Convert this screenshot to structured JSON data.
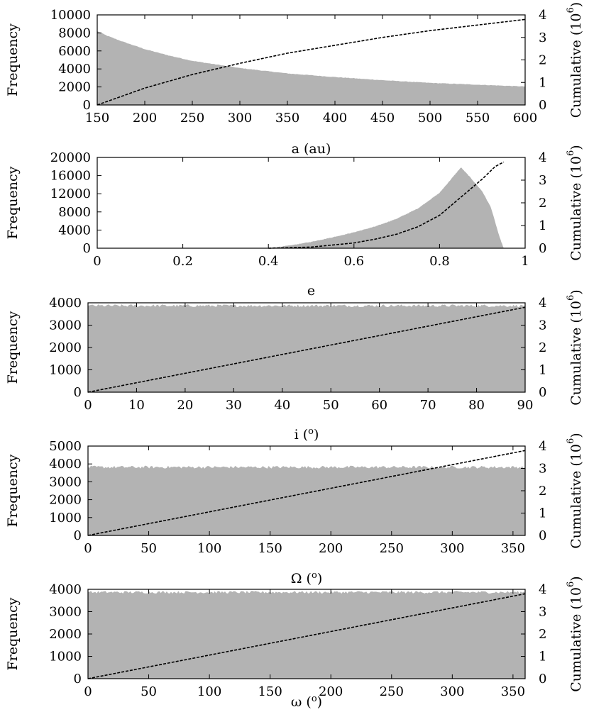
{
  "chart_data": [
    {
      "type": "area",
      "xlabel": "a (au)",
      "ylabel": "Frequency",
      "y2label": "Cumulative (10",
      "y2label_exp": "6",
      "xlim": [
        150,
        600
      ],
      "ylim": [
        0,
        10000
      ],
      "y2lim": [
        0,
        4
      ],
      "xticks": [
        150,
        200,
        250,
        300,
        350,
        400,
        450,
        500,
        550,
        600
      ],
      "yticks": [
        0,
        2000,
        4000,
        6000,
        8000,
        10000
      ],
      "y2ticks": [
        0,
        1,
        2,
        3,
        4
      ],
      "series": [
        {
          "name": "Frequency",
          "style": "gray-histogram",
          "x": [
            150,
            160,
            175,
            200,
            225,
            250,
            275,
            300,
            350,
            400,
            450,
            500,
            550,
            600
          ],
          "values": [
            8200,
            7700,
            7100,
            6200,
            5500,
            4900,
            4500,
            4100,
            3500,
            3100,
            2750,
            2450,
            2250,
            2050
          ]
        },
        {
          "name": "Cumulative",
          "style": "dashed",
          "axis": "y2",
          "x": [
            150,
            200,
            250,
            300,
            350,
            400,
            450,
            500,
            550,
            600
          ],
          "values": [
            0,
            0.75,
            1.35,
            1.85,
            2.3,
            2.65,
            3.0,
            3.3,
            3.55,
            3.8
          ]
        }
      ]
    },
    {
      "type": "area",
      "xlabel": "e",
      "ylabel": "Frequency",
      "y2label": "Cumulative (10",
      "y2label_exp": "6",
      "xlim": [
        0,
        1
      ],
      "ylim": [
        0,
        20000
      ],
      "y2lim": [
        0,
        4
      ],
      "xticks": [
        0,
        0.2,
        0.4,
        0.6,
        0.8,
        1
      ],
      "yticks": [
        0,
        4000,
        8000,
        12000,
        16000,
        20000
      ],
      "y2ticks": [
        0,
        1,
        2,
        3,
        4
      ],
      "series": [
        {
          "name": "Frequency",
          "style": "gray-histogram",
          "x": [
            0.4,
            0.45,
            0.5,
            0.55,
            0.6,
            0.65,
            0.7,
            0.75,
            0.8,
            0.85,
            0.87,
            0.9,
            0.92,
            0.94,
            0.95
          ],
          "values": [
            0,
            600,
            1400,
            2400,
            3500,
            4800,
            6500,
            8800,
            12200,
            17800,
            15800,
            12500,
            9000,
            2500,
            0
          ]
        },
        {
          "name": "Cumulative",
          "style": "dashed",
          "axis": "y2",
          "x": [
            0.4,
            0.5,
            0.6,
            0.65,
            0.7,
            0.75,
            0.8,
            0.85,
            0.9,
            0.93,
            0.95
          ],
          "values": [
            0,
            0.05,
            0.23,
            0.4,
            0.62,
            0.95,
            1.45,
            2.25,
            3.05,
            3.6,
            3.8
          ]
        }
      ]
    },
    {
      "type": "area",
      "xlabel": "i (",
      "xlabel_exp": "o",
      "xlabel_end": ")",
      "ylabel": "Frequency",
      "y2label": "Cumulative (10",
      "y2label_exp": "6",
      "xlim": [
        0,
        90
      ],
      "ylim": [
        0,
        4000
      ],
      "y2lim": [
        0,
        4
      ],
      "xticks": [
        0,
        10,
        20,
        30,
        40,
        50,
        60,
        70,
        80,
        90
      ],
      "yticks": [
        0,
        1000,
        2000,
        3000,
        4000
      ],
      "y2ticks": [
        0,
        1,
        2,
        3,
        4
      ],
      "series": [
        {
          "name": "Frequency",
          "style": "gray-histogram",
          "x": [
            0,
            90
          ],
          "values": [
            3870,
            3870
          ],
          "noise": 60
        },
        {
          "name": "Cumulative",
          "style": "dashed",
          "axis": "y2",
          "x": [
            0,
            90
          ],
          "values": [
            0,
            3.8
          ]
        }
      ]
    },
    {
      "type": "area",
      "xlabel": "Ω (",
      "xlabel_exp": "o",
      "xlabel_end": ")",
      "ylabel": "Frequency",
      "y2label": "Cumulative (10",
      "y2label_exp": "6",
      "xlim": [
        0,
        360
      ],
      "ylim": [
        0,
        5000
      ],
      "y2lim": [
        0,
        4
      ],
      "xticks": [
        0,
        50,
        100,
        150,
        200,
        250,
        300,
        350
      ],
      "yticks": [
        0,
        1000,
        2000,
        3000,
        4000,
        5000
      ],
      "y2ticks": [
        0,
        1,
        2,
        3,
        4
      ],
      "series": [
        {
          "name": "Frequency",
          "style": "gray-histogram",
          "x": [
            0,
            360
          ],
          "values": [
            3820,
            3820
          ],
          "noise": 80
        },
        {
          "name": "Cumulative",
          "style": "dashed",
          "axis": "y2",
          "x": [
            0,
            360
          ],
          "values": [
            0,
            3.8
          ]
        }
      ]
    },
    {
      "type": "area",
      "xlabel": "ω (",
      "xlabel_exp": "o",
      "xlabel_end": ")",
      "ylabel": "Frequency",
      "y2label": "Cumulative (10",
      "y2label_exp": "6",
      "xlim": [
        0,
        360
      ],
      "ylim": [
        0,
        4000
      ],
      "y2lim": [
        0,
        4
      ],
      "xticks": [
        0,
        50,
        100,
        150,
        200,
        250,
        300,
        350
      ],
      "yticks": [
        0,
        1000,
        2000,
        3000,
        4000
      ],
      "y2ticks": [
        0,
        1,
        2,
        3,
        4
      ],
      "series": [
        {
          "name": "Frequency",
          "style": "gray-histogram",
          "x": [
            0,
            360
          ],
          "values": [
            3870,
            3870
          ],
          "noise": 60
        },
        {
          "name": "Cumulative",
          "style": "dashed",
          "axis": "y2",
          "x": [
            0,
            360
          ],
          "values": [
            0,
            3.8
          ]
        }
      ]
    }
  ]
}
